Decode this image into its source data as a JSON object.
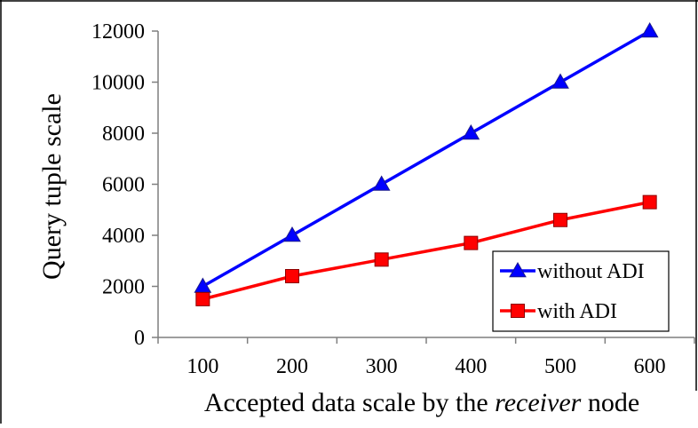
{
  "chart_data": {
    "type": "line",
    "title": "",
    "xlabel_parts": [
      "Accepted data scale by the ",
      "receiver",
      " node"
    ],
    "ylabel": "Query tuple scale",
    "categories": [
      "100",
      "200",
      "300",
      "400",
      "500",
      "600"
    ],
    "ylim": [
      0,
      12000
    ],
    "yticks": [
      0,
      2000,
      4000,
      6000,
      8000,
      10000,
      12000
    ],
    "grid": false,
    "legend": "lower-right",
    "series": [
      {
        "name": "without ADI",
        "values": [
          2000,
          4000,
          6000,
          8000,
          10000,
          12000
        ],
        "color": "#0000ff",
        "marker": "triangle"
      },
      {
        "name": "with ADI",
        "values": [
          1500,
          2400,
          3050,
          3700,
          4600,
          5300
        ],
        "color": "#ff0000",
        "marker": "square"
      }
    ]
  }
}
